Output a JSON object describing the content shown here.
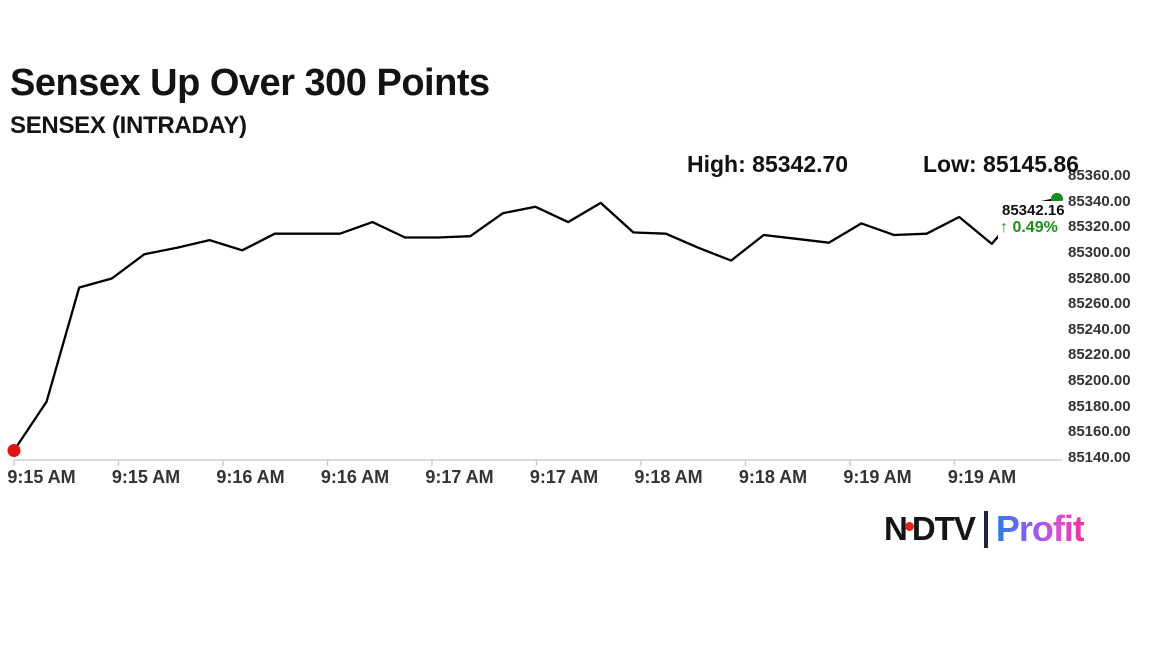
{
  "header": {
    "title": "Sensex Up Over 300 Points",
    "subtitle": "SENSEX (INTRADAY)",
    "high_label": "High: 85342.70",
    "low_label": "Low: 85145.86"
  },
  "annotation": {
    "last_price": "85342.16",
    "change": "↑ 0.49%",
    "change_color": "#1e8e1e"
  },
  "chart_data": {
    "type": "line",
    "title": "SENSEX (INTRADAY)",
    "x_tick_labels": [
      "9:15 AM",
      "9:15 AM",
      "9:16 AM",
      "9:16 AM",
      "9:17 AM",
      "9:17 AM",
      "9:18 AM",
      "9:18 AM",
      "9:19 AM",
      "9:19 AM"
    ],
    "y_tick_labels": [
      "85360.00",
      "85340.00",
      "85320.00",
      "85300.00",
      "85280.00",
      "85260.00",
      "85240.00",
      "85220.00",
      "85200.00",
      "85180.00",
      "85160.00",
      "85140.00"
    ],
    "ylim": [
      85140,
      85360
    ],
    "y_step": 20,
    "values": [
      85145.86,
      85184,
      85273,
      85280,
      85299,
      85304,
      85310,
      85302,
      85315,
      85315,
      85315,
      85324,
      85312,
      85312,
      85313,
      85331,
      85336,
      85324,
      85339,
      85316,
      85315,
      85304,
      85294,
      85314,
      85311,
      85308,
      85323,
      85314,
      85315,
      85328,
      85307,
      85337,
      85342.16
    ],
    "high": 85342.7,
    "low": 85145.86,
    "last_value": 85342.16,
    "change_percent": 0.49,
    "line_color": "#000000",
    "axis_color": "#cfcfcf",
    "start_dot_color": "#e01212",
    "end_dot_color": "#1d8a1d",
    "grid": false,
    "legend": false
  },
  "logo": {
    "ndtv_n": "N",
    "ndtv_rest": "DTV",
    "profit": "Profit",
    "dot_color": "#e3231d",
    "separator_color": "#1d2340"
  }
}
